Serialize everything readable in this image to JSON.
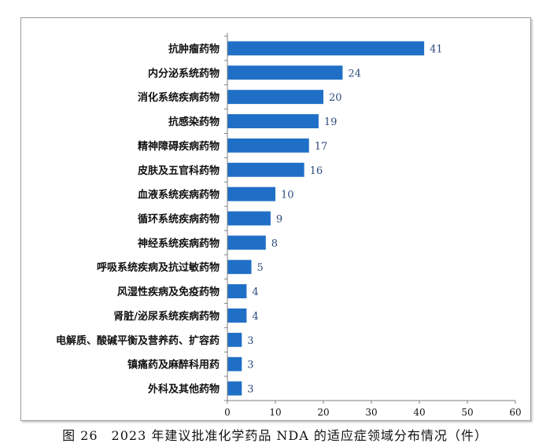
{
  "caption": "图 26　2023 年建议批准化学药品 NDA 的适应症领域分布情况（件）",
  "colors": {
    "bar": "#1f6fc6",
    "axis": "#7f7f7f",
    "value_label": "#2b4a7a"
  },
  "chart_data": {
    "type": "bar",
    "orientation": "horizontal",
    "categories": [
      "抗肿瘤药物",
      "内分泌系统药物",
      "消化系统疾病药物",
      "抗感染药物",
      "精神障碍疾病药物",
      "皮肤及五官科药物",
      "血液系统疾病药物",
      "循环系统疾病药物",
      "神经系统疾病药物",
      "呼吸系统疾病及抗过敏药物",
      "风湿性疾病及免疫药物",
      "肾脏/泌尿系统疾病药物",
      "电解质、酸碱平衡及营养药、扩容药",
      "镇痛药及麻醉科用药",
      "外科及其他药物"
    ],
    "values": [
      41,
      24,
      20,
      19,
      17,
      16,
      10,
      9,
      8,
      5,
      4,
      4,
      3,
      3,
      3
    ],
    "xlim": [
      0,
      60
    ],
    "xticks": [
      0,
      10,
      20,
      30,
      40,
      50,
      60
    ],
    "grid": false,
    "legend": "none"
  }
}
